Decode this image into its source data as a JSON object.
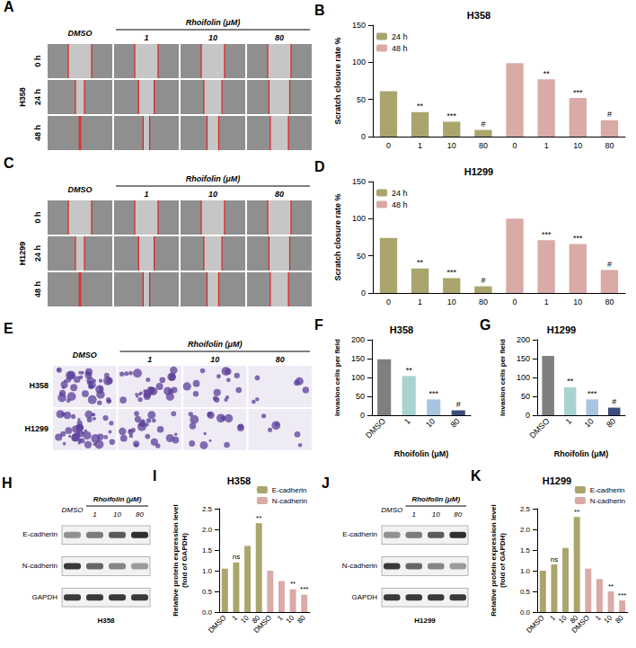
{
  "chart_data": [
    {
      "panel": "B",
      "type": "bar",
      "title": "H358",
      "ylabel": "Scratch closure rate %",
      "categories": [
        "0",
        "1",
        "10",
        "80",
        "0",
        "1",
        "10",
        "80"
      ],
      "series": [
        {
          "name": "24 h",
          "color": "#a9a56c",
          "values": [
            61,
            33,
            20,
            9,
            null,
            null,
            null,
            null
          ],
          "significance": [
            null,
            "**",
            "***",
            "#",
            null,
            null,
            null,
            null
          ]
        },
        {
          "name": "48 h",
          "color": "#d9aaa6",
          "values": [
            null,
            null,
            null,
            null,
            99,
            77,
            52,
            22
          ],
          "significance": [
            null,
            null,
            null,
            null,
            null,
            "**",
            "***",
            "#"
          ]
        }
      ],
      "ylim": [
        0,
        150
      ],
      "yticks": [
        0,
        50,
        100,
        150
      ],
      "legend": "top-left",
      "grid": false
    },
    {
      "panel": "D",
      "type": "bar",
      "title": "H1299",
      "ylabel": "Scratch closure rate %",
      "categories": [
        "0",
        "1",
        "10",
        "80",
        "0",
        "1",
        "10",
        "80"
      ],
      "series": [
        {
          "name": "24 h",
          "color": "#a9a56c",
          "values": [
            74,
            33,
            20,
            9,
            null,
            null,
            null,
            null
          ],
          "significance": [
            null,
            "**",
            "***",
            "#",
            null,
            null,
            null,
            null
          ]
        },
        {
          "name": "48 h",
          "color": "#d9aaa6",
          "values": [
            null,
            null,
            null,
            null,
            100,
            71,
            66,
            31
          ],
          "significance": [
            null,
            null,
            null,
            null,
            null,
            "***",
            "***",
            "#"
          ]
        }
      ],
      "ylim": [
        0,
        150
      ],
      "yticks": [
        0,
        50,
        100,
        150
      ],
      "legend": "top-left",
      "grid": false
    },
    {
      "panel": "F",
      "type": "bar",
      "title": "H358",
      "xlabel": "Rhoifolin (μM)",
      "ylabel": "Invasion cells per field",
      "categories": [
        "DMSO",
        "1",
        "10",
        "80"
      ],
      "values": [
        148,
        104,
        42,
        13
      ],
      "colors": [
        "#7f7f7f",
        "#a9d3d0",
        "#a7c5e0",
        "#3c4d7e"
      ],
      "significance": [
        null,
        "**",
        "***",
        "#"
      ],
      "ylim": [
        0,
        200
      ],
      "yticks": [
        0,
        50,
        100,
        150,
        200
      ],
      "grid": false
    },
    {
      "panel": "G",
      "type": "bar",
      "title": "H1299",
      "xlabel": "Rhoifolin (μM)",
      "ylabel": "Invasion cells per field",
      "categories": [
        "DMSO",
        "1",
        "10",
        "80"
      ],
      "values": [
        157,
        74,
        42,
        20
      ],
      "colors": [
        "#7f7f7f",
        "#a9d3d0",
        "#a7c5e0",
        "#3c4d7e"
      ],
      "significance": [
        null,
        "**",
        "***",
        "#"
      ],
      "ylim": [
        0,
        200
      ],
      "yticks": [
        0,
        50,
        100,
        150,
        200
      ],
      "grid": false
    },
    {
      "panel": "I",
      "type": "bar",
      "title": "H358",
      "ylabel": [
        "Relative protein expression level",
        "(fold of GAPDH)"
      ],
      "categories": [
        "DMSO",
        "1",
        "10",
        "80",
        "DMSO",
        "1",
        "10",
        "80"
      ],
      "series": [
        {
          "name": "E-cadherin",
          "color": "#a9a56c",
          "values": [
            1.05,
            1.2,
            1.6,
            2.15,
            null,
            null,
            null,
            null
          ],
          "significance": [
            null,
            "ns",
            null,
            "**",
            null,
            null,
            null,
            null
          ]
        },
        {
          "name": "N-cadherin",
          "color": "#d9aaa6",
          "values": [
            null,
            null,
            null,
            null,
            1.0,
            0.75,
            0.55,
            0.42
          ],
          "significance": [
            null,
            null,
            null,
            null,
            null,
            null,
            "**",
            "***"
          ]
        }
      ],
      "ylim": [
        0,
        2.5
      ],
      "yticks": [
        {
          "value": 0,
          "label": "0.0"
        },
        0.5,
        {
          "value": 1,
          "label": "1.0"
        },
        1.5,
        {
          "value": 2,
          "label": "2.0"
        },
        2.5
      ],
      "legend": "top-right",
      "grid": false
    },
    {
      "panel": "K",
      "type": "bar",
      "title": "H1299",
      "ylabel": [
        "Relative protein expression level",
        "(fold of GAPDH)"
      ],
      "categories": [
        "DMSO",
        "1",
        "10",
        "80",
        "DMSO",
        "1",
        "10",
        "80"
      ],
      "series": [
        {
          "name": "E-cadherin",
          "color": "#a9a56c",
          "values": [
            1.0,
            1.15,
            1.55,
            2.3,
            null,
            null,
            null,
            null
          ],
          "significance": [
            null,
            "ns",
            null,
            "**",
            null,
            null,
            null,
            null
          ]
        },
        {
          "name": "N-cadherin",
          "color": "#d9aaa6",
          "values": [
            null,
            null,
            null,
            null,
            1.05,
            0.8,
            0.5,
            0.28
          ],
          "significance": [
            null,
            null,
            null,
            null,
            null,
            null,
            "**",
            "***"
          ]
        }
      ],
      "ylim": [
        0,
        2.5
      ],
      "yticks": [
        {
          "value": 0,
          "label": "0.0"
        },
        0.5,
        {
          "value": 1,
          "label": "1.0"
        },
        1.5,
        {
          "value": 2,
          "label": "2.0"
        },
        2.5
      ],
      "legend": "top-right",
      "grid": false
    }
  ],
  "image_panels": [
    {
      "panel": "A",
      "type": "scratch",
      "cell_line": "H358",
      "column_group": "Rhoifolin (μM)",
      "columns": [
        "DMSO",
        "1",
        "10",
        "80"
      ],
      "rows": [
        "0 h",
        "24 h",
        "48 h"
      ]
    },
    {
      "panel": "C",
      "type": "scratch",
      "cell_line": "H1299",
      "column_group": "Rhoifolin (μM)",
      "columns": [
        "DMSO",
        "1",
        "10",
        "80"
      ],
      "rows": [
        "0 h",
        "24 h",
        "48 h"
      ]
    },
    {
      "panel": "E",
      "type": "invasion",
      "column_group": "Rhoifolin (μM)",
      "columns": [
        "DMSO",
        "1",
        "10",
        "80"
      ],
      "rows": [
        "H358",
        "H1299"
      ]
    },
    {
      "panel": "H",
      "type": "blot",
      "cell_line": "H358",
      "column_group": "Rhoifolin (μM)",
      "columns": [
        "DMSO",
        "1",
        "10",
        "80"
      ],
      "rows": [
        "E-cadherin",
        "N-cadherin",
        "GAPDH"
      ]
    },
    {
      "panel": "J",
      "type": "blot",
      "cell_line": "H1299",
      "column_group": "Rhoifolin (μM)",
      "columns": [
        "DMSO",
        "1",
        "10",
        "80"
      ],
      "rows": [
        "E-cadherin",
        "N-cadherin",
        "GAPDH"
      ]
    }
  ]
}
